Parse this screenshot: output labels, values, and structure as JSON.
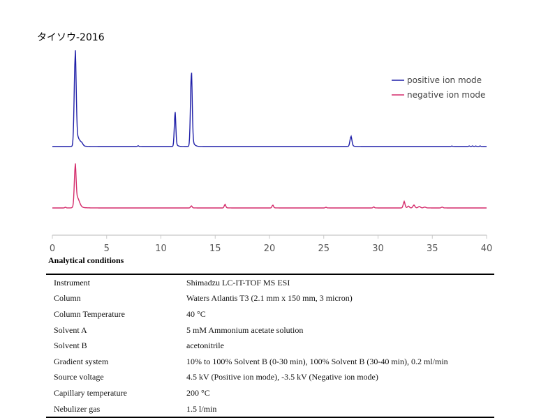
{
  "chart_data": {
    "type": "line",
    "title": "タイソウ-2016",
    "xlabel": "",
    "ylabel": "",
    "xlim": [
      0,
      40
    ],
    "xticks": [
      0,
      5,
      10,
      15,
      20,
      25,
      30,
      35,
      40
    ],
    "xtick_labels": [
      "0",
      "5",
      "10",
      "15",
      "20",
      "25",
      "30",
      "35",
      "40"
    ],
    "grid": false,
    "legend_position": "top-right",
    "series": [
      {
        "name": "positive ion mode",
        "color": "#1f1fa8",
        "baseline": 0,
        "peaks": [
          {
            "x": 2.1,
            "y": 100,
            "width": 0.09
          },
          {
            "x": 2.35,
            "y": 6,
            "width": 0.2
          },
          {
            "x": 2.7,
            "y": 2.5,
            "width": 0.12
          },
          {
            "x": 7.9,
            "y": 0.8,
            "width": 0.06
          },
          {
            "x": 11.3,
            "y": 37,
            "width": 0.07
          },
          {
            "x": 12.8,
            "y": 82,
            "width": 0.08
          },
          {
            "x": 27.5,
            "y": 11,
            "width": 0.09
          },
          {
            "x": 36.8,
            "y": 0.6,
            "width": 0.05
          },
          {
            "x": 38.4,
            "y": 0.7,
            "width": 0.05
          },
          {
            "x": 38.7,
            "y": 0.7,
            "width": 0.05
          },
          {
            "x": 39.0,
            "y": 0.6,
            "width": 0.05
          },
          {
            "x": 39.4,
            "y": 0.7,
            "width": 0.05
          }
        ]
      },
      {
        "name": "negative ion mode",
        "color": "#d42a6a",
        "baseline": 0,
        "peaks": [
          {
            "x": 2.1,
            "y": 55,
            "width": 0.08
          },
          {
            "x": 2.3,
            "y": 12,
            "width": 0.2
          },
          {
            "x": 1.2,
            "y": 1,
            "width": 0.06
          },
          {
            "x": 12.8,
            "y": 3,
            "width": 0.07
          },
          {
            "x": 15.9,
            "y": 5,
            "width": 0.07
          },
          {
            "x": 20.3,
            "y": 4,
            "width": 0.07
          },
          {
            "x": 25.2,
            "y": 1,
            "width": 0.06
          },
          {
            "x": 29.6,
            "y": 1.5,
            "width": 0.06
          },
          {
            "x": 32.4,
            "y": 9,
            "width": 0.08
          },
          {
            "x": 32.8,
            "y": 2.5,
            "width": 0.08
          },
          {
            "x": 33.3,
            "y": 4,
            "width": 0.09
          },
          {
            "x": 33.8,
            "y": 2,
            "width": 0.1
          },
          {
            "x": 34.3,
            "y": 1.2,
            "width": 0.1
          },
          {
            "x": 35.9,
            "y": 1.2,
            "width": 0.08
          }
        ]
      }
    ]
  },
  "conditions": {
    "heading": "Analytical conditions",
    "rows": [
      {
        "label": "Instrument",
        "value": "Shimadzu LC-IT-TOF MS ESI"
      },
      {
        "label": "Column",
        "value": "Waters Atlantis T3 (2.1 mm x 150 mm, 3 micron)"
      },
      {
        "label": "Column Temperature",
        "value": "40 °C"
      },
      {
        "label": "Solvent A",
        "value": "5 mM Ammonium acetate solution"
      },
      {
        "label": "Solvent B",
        "value": "acetonitrile"
      },
      {
        "label": "Gradient system",
        "value": "10% to 100% Solvent B (0-30 min), 100% Solvent B (30-40 min), 0.2 ml/min"
      },
      {
        "label": "Source voltage",
        "value": "4.5 kV (Positive ion mode), -3.5 kV (Negative ion mode)"
      },
      {
        "label": "Capillary temperature",
        "value": "200 °C"
      },
      {
        "label": "Nebulizer gas",
        "value": "1.5 l/min"
      }
    ]
  }
}
